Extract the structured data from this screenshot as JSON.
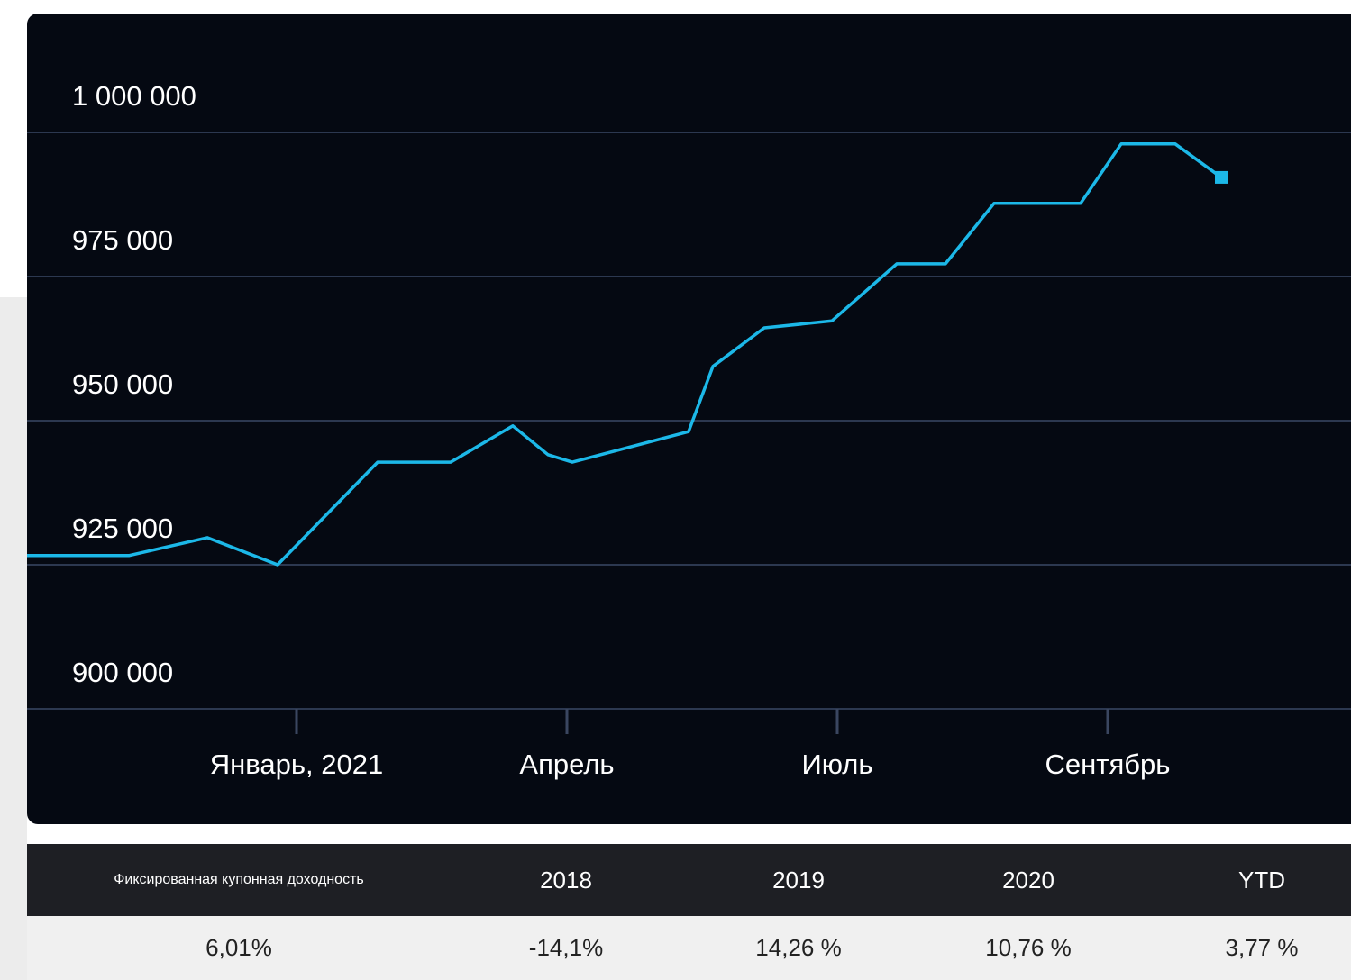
{
  "chart_data": {
    "type": "line",
    "x": [
      -1.0,
      -0.62,
      -0.33,
      -0.07,
      0.3,
      0.57,
      0.8,
      0.93,
      1.02,
      1.45,
      1.54,
      1.73,
      1.98,
      2.22,
      2.4,
      2.58,
      2.9,
      3.05,
      3.25,
      3.42
    ],
    "series": [
      {
        "color": "#1cb8e8",
        "values": [
          926600,
          926600,
          929700,
          925000,
          942800,
          942800,
          949100,
          944100,
          942800,
          948100,
          959400,
          966100,
          967300,
          977200,
          977200,
          987700,
          987700,
          998000,
          998000,
          992200
        ]
      }
    ],
    "xlim": [
      -1,
      3.9
    ],
    "xticks": [
      {
        "value": 0,
        "label": "Январь, 2021"
      },
      {
        "value": 1,
        "label": "Апрель"
      },
      {
        "value": 2,
        "label": "Июль"
      },
      {
        "value": 3,
        "label": "Сентябрь"
      }
    ],
    "ylim": [
      900000,
      1000000
    ],
    "yticks": [
      {
        "value": 900000,
        "label": "900 000"
      },
      {
        "value": 925000,
        "label": "925 000"
      },
      {
        "value": 950000,
        "label": "950 000"
      },
      {
        "value": 975000,
        "label": "975 000"
      },
      {
        "value": 1000000,
        "label": "1 000 000"
      }
    ],
    "grid": true
  },
  "table": {
    "header": [
      "Фиксированная купонная доходность",
      "2018",
      "2019",
      "2020",
      "YTD"
    ],
    "rows": [
      [
        "6,01%",
        "-14,1%",
        "14,26 %",
        "10,76 %",
        "3,77 %"
      ]
    ]
  }
}
